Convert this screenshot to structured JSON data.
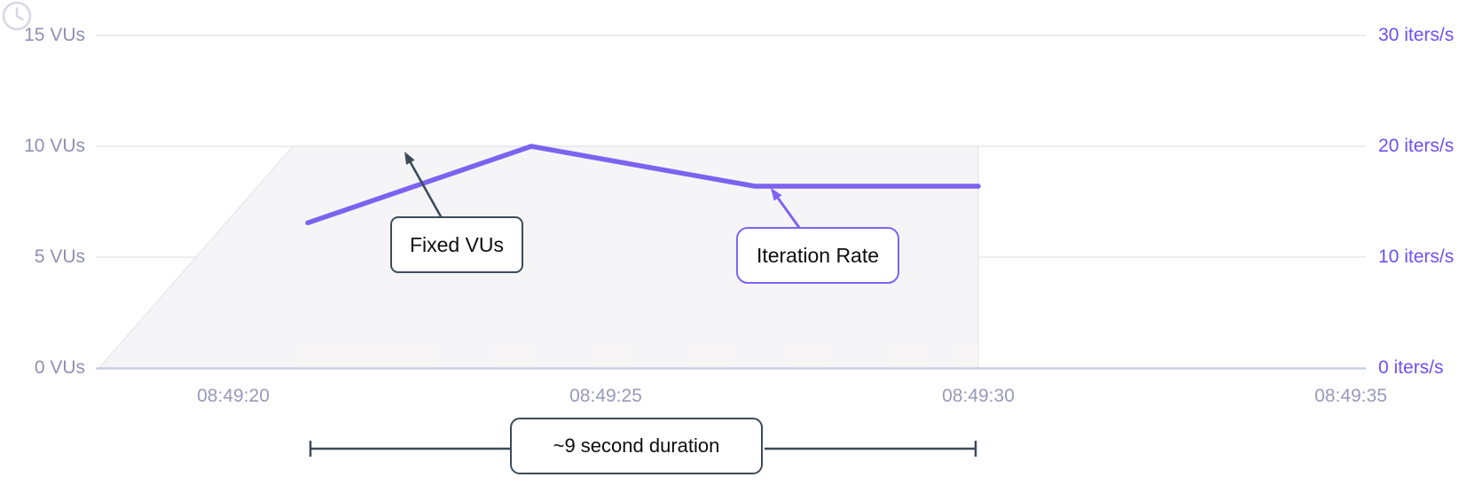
{
  "colors": {
    "line_purple": "#7b63f0",
    "right_axis_label": "#6e50f2",
    "left_axis_label": "#8e90b2",
    "x_axis_label": "#979ab9",
    "grid": "#ededf1",
    "axis_line": "#c9d1e2",
    "area_fill": "#f5f5f7",
    "area_edge": "#e9e9ee",
    "area_stripe": "#f8f6f3",
    "annotation_dark": "#3d4b59",
    "annotation_purple": "#7f63f2",
    "clock_icon": "#d8d8e5"
  },
  "chart_data": {
    "type": "line",
    "title": "",
    "grid": true,
    "legend_position": "none",
    "x_axis": {
      "labels": [
        "08:49:20",
        "08:49:25",
        "08:49:30",
        "08:49:35"
      ]
    },
    "y_axis_left": {
      "unit": "VUs",
      "range": [
        0,
        15
      ],
      "ticks": [
        {
          "label": "15 VUs",
          "value": 15
        },
        {
          "label": "10 VUs",
          "value": 10
        },
        {
          "label": "5 VUs",
          "value": 5
        },
        {
          "label": "0 VUs",
          "value": 0
        }
      ]
    },
    "y_axis_right": {
      "unit": "iters/s",
      "range": [
        0,
        30
      ],
      "ticks": [
        {
          "label": "30 iters/s",
          "value": 30
        },
        {
          "label": "20 iters/s",
          "value": 20
        },
        {
          "label": "10 iters/s",
          "value": 10
        },
        {
          "label": "0 iters/s",
          "value": 0
        }
      ]
    },
    "series": [
      {
        "name": "Fixed VUs",
        "type": "area",
        "axis": "left",
        "points": [
          {
            "t": "08:49:18.2",
            "v": 0
          },
          {
            "t": "08:49:20.8",
            "v": 10
          },
          {
            "t": "08:49:30.0",
            "v": 10
          },
          {
            "t": "08:49:30.0",
            "v": 0
          }
        ]
      },
      {
        "name": "Iteration Rate",
        "type": "line",
        "axis": "right",
        "points": [
          {
            "t": "08:49:21.0",
            "v": 13.1
          },
          {
            "t": "08:49:24.0",
            "v": 20
          },
          {
            "t": "08:49:27.0",
            "v": 16.4
          },
          {
            "t": "08:49:30.0",
            "v": 16.4
          }
        ]
      }
    ]
  },
  "annotations": {
    "fixed_vus": {
      "label": "Fixed VUs"
    },
    "iteration_rate": {
      "label": "Iteration Rate"
    },
    "duration": {
      "label": "~9 second duration"
    }
  }
}
